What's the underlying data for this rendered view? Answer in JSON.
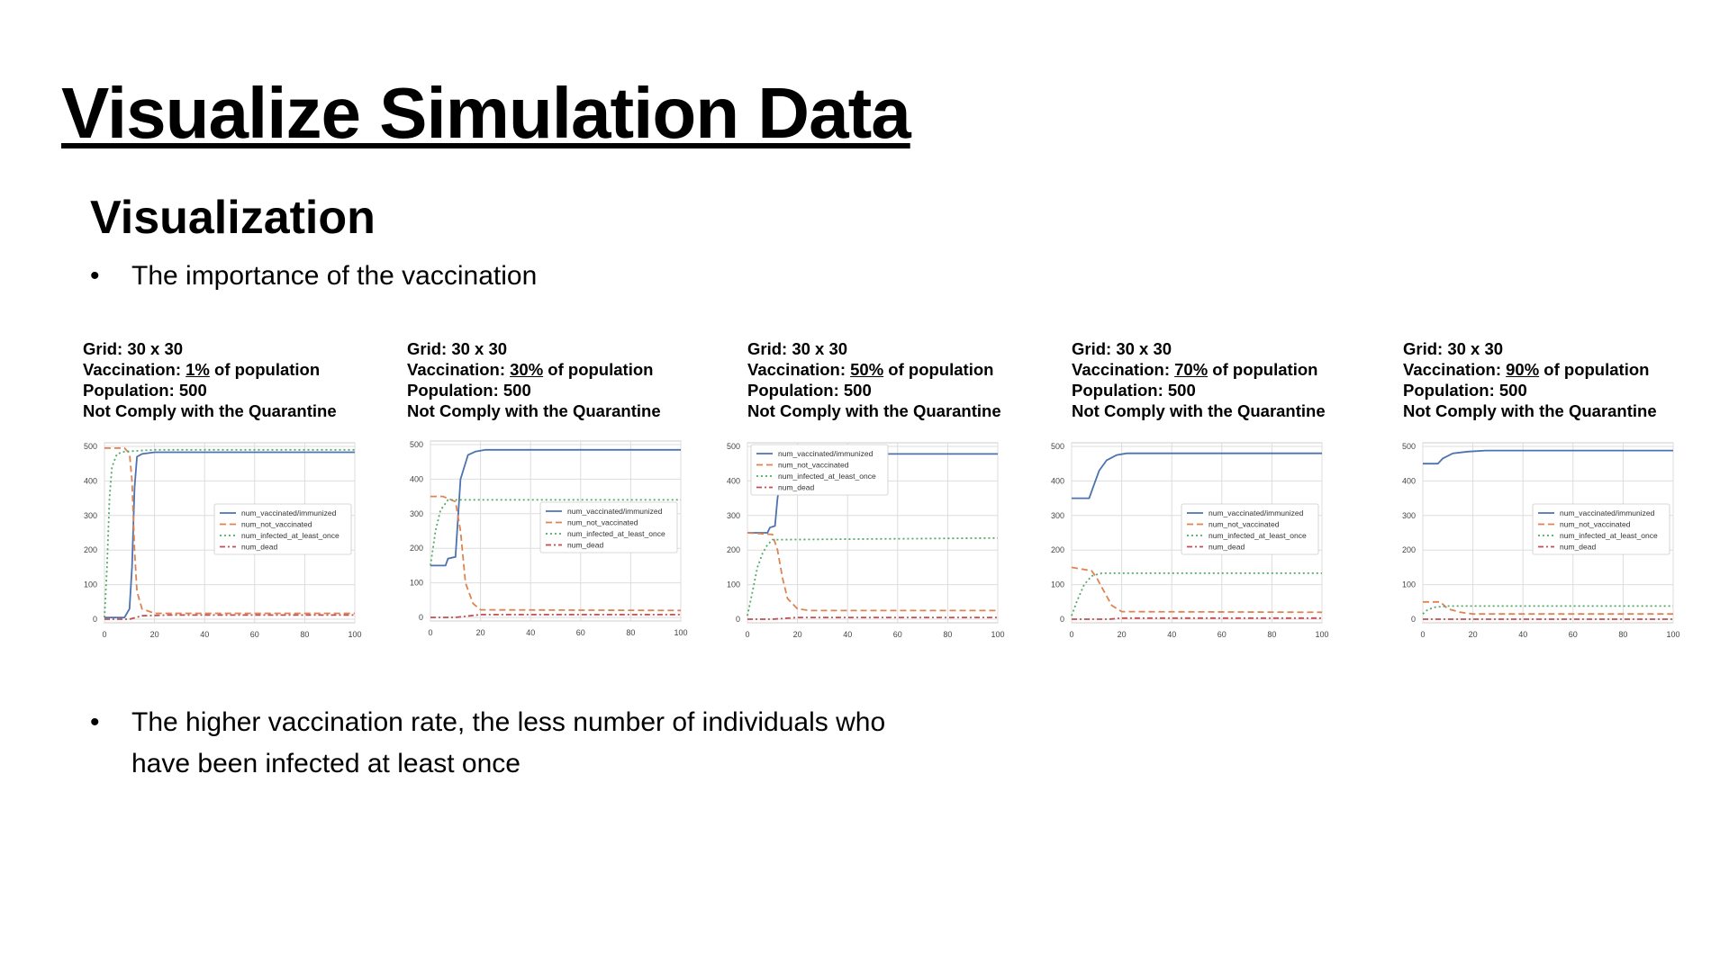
{
  "slide": {
    "title": "Visualize Simulation Data",
    "subtitle": "Visualization",
    "bullets": [
      "The importance of the vaccination",
      "The higher vaccination rate, the less number of individuals who have been infected at least once"
    ]
  },
  "colors": {
    "num_vaccinated_immunized": "#4c72b0",
    "num_not_vaccinated": "#dd8452",
    "num_infected_at_least_once": "#55a868",
    "num_dead": "#c44e52",
    "grid": "#dddddd",
    "frame": "#cccccc"
  },
  "panels": [
    {
      "grid": "Grid: 30 x 30",
      "vacc_prefix": "Vaccination: ",
      "vacc_value": "1%",
      "vacc_suffix": " of population",
      "population": "Population: 500",
      "quarantine": "Not Comply with the Quarantine"
    },
    {
      "grid": "Grid: 30 x 30",
      "vacc_prefix": "Vaccination: ",
      "vacc_value": "30%",
      "vacc_suffix": " of population",
      "population": "Population: 500",
      "quarantine": "Not Comply with the Quarantine"
    },
    {
      "grid": "Grid: 30 x 30",
      "vacc_prefix": "Vaccination: ",
      "vacc_value": "50%",
      "vacc_suffix": " of population",
      "population": "Population: 500",
      "quarantine": "Not Comply with the Quarantine"
    },
    {
      "grid": "Grid: 30 x 30",
      "vacc_prefix": "Vaccination: ",
      "vacc_value": "70%",
      "vacc_suffix": " of population",
      "population": "Population: 500",
      "quarantine": "Not Comply with the Quarantine"
    },
    {
      "grid": "Grid: 30 x 30",
      "vacc_prefix": "Vaccination: ",
      "vacc_value": "90%",
      "vacc_suffix": " of population",
      "population": "Population: 500",
      "quarantine": "Not Comply with the Quarantine"
    }
  ],
  "chart_data": [
    {
      "type": "line",
      "xlim": [
        0,
        100
      ],
      "ylim": [
        0,
        500
      ],
      "xticks": [
        0,
        20,
        40,
        60,
        80,
        100
      ],
      "yticks": [
        0,
        100,
        200,
        300,
        400,
        500
      ],
      "legend_position": "center-right",
      "grid": true,
      "series": [
        {
          "name": "num_vaccinated/immunized",
          "style": "solid",
          "points": [
            [
              0,
              5
            ],
            [
              8,
              5
            ],
            [
              10,
              30
            ],
            [
              11,
              150
            ],
            [
              12,
              380
            ],
            [
              13,
              470
            ],
            [
              15,
              478
            ],
            [
              20,
              483
            ],
            [
              100,
              483
            ]
          ]
        },
        {
          "name": "num_not_vaccinated",
          "style": "dashed",
          "points": [
            [
              0,
              495
            ],
            [
              8,
              495
            ],
            [
              10,
              480
            ],
            [
              11,
              400
            ],
            [
              12,
              200
            ],
            [
              13,
              80
            ],
            [
              15,
              30
            ],
            [
              20,
              17
            ],
            [
              100,
              17
            ]
          ]
        },
        {
          "name": "num_infected_at_least_once",
          "style": "dotted",
          "points": [
            [
              0,
              5
            ],
            [
              1,
              150
            ],
            [
              2,
              350
            ],
            [
              3,
              440
            ],
            [
              5,
              478
            ],
            [
              8,
              485
            ],
            [
              20,
              490
            ],
            [
              100,
              490
            ]
          ]
        },
        {
          "name": "num_dead",
          "style": "dashdot",
          "points": [
            [
              0,
              0
            ],
            [
              10,
              0
            ],
            [
              15,
              10
            ],
            [
              25,
              12
            ],
            [
              100,
              12
            ]
          ]
        }
      ]
    },
    {
      "type": "line",
      "xlim": [
        0,
        100
      ],
      "ylim": [
        0,
        500
      ],
      "xticks": [
        0,
        20,
        40,
        60,
        80,
        100
      ],
      "yticks": [
        0,
        100,
        200,
        300,
        400,
        500
      ],
      "legend_position": "center-right",
      "grid": true,
      "series": [
        {
          "name": "num_vaccinated/immunized",
          "style": "solid",
          "points": [
            [
              0,
              150
            ],
            [
              6,
              150
            ],
            [
              7,
              170
            ],
            [
              10,
              175
            ],
            [
              12,
              400
            ],
            [
              15,
              470
            ],
            [
              18,
              480
            ],
            [
              22,
              485
            ],
            [
              100,
              485
            ]
          ]
        },
        {
          "name": "num_not_vaccinated",
          "style": "dashed",
          "points": [
            [
              0,
              350
            ],
            [
              5,
              350
            ],
            [
              10,
              335
            ],
            [
              12,
              250
            ],
            [
              14,
              100
            ],
            [
              17,
              40
            ],
            [
              20,
              22
            ],
            [
              100,
              20
            ]
          ]
        },
        {
          "name": "num_infected_at_least_once",
          "style": "dotted",
          "points": [
            [
              0,
              150
            ],
            [
              2,
              250
            ],
            [
              4,
              310
            ],
            [
              7,
              340
            ],
            [
              100,
              340
            ]
          ]
        },
        {
          "name": "num_dead",
          "style": "dashdot",
          "points": [
            [
              0,
              0
            ],
            [
              10,
              0
            ],
            [
              20,
              8
            ],
            [
              100,
              8
            ]
          ]
        }
      ]
    },
    {
      "type": "line",
      "xlim": [
        0,
        100
      ],
      "ylim": [
        0,
        500
      ],
      "xticks": [
        0,
        20,
        40,
        60,
        80,
        100
      ],
      "yticks": [
        0,
        100,
        200,
        300,
        400,
        500
      ],
      "legend_position": "top-left",
      "grid": true,
      "series": [
        {
          "name": "num_vaccinated/immunized",
          "style": "solid",
          "points": [
            [
              0,
              250
            ],
            [
              8,
              250
            ],
            [
              9,
              265
            ],
            [
              11,
              270
            ],
            [
              12,
              350
            ],
            [
              14,
              440
            ],
            [
              16,
              470
            ],
            [
              20,
              478
            ],
            [
              100,
              478
            ]
          ]
        },
        {
          "name": "num_not_vaccinated",
          "style": "dashed",
          "points": [
            [
              0,
              250
            ],
            [
              10,
              245
            ],
            [
              12,
              200
            ],
            [
              14,
              120
            ],
            [
              16,
              60
            ],
            [
              20,
              30
            ],
            [
              25,
              25
            ],
            [
              100,
              25
            ]
          ]
        },
        {
          "name": "num_infected_at_least_once",
          "style": "dotted",
          "points": [
            [
              0,
              10
            ],
            [
              2,
              80
            ],
            [
              4,
              150
            ],
            [
              6,
              190
            ],
            [
              8,
              215
            ],
            [
              10,
              230
            ],
            [
              100,
              235
            ]
          ]
        },
        {
          "name": "num_dead",
          "style": "dashdot",
          "points": [
            [
              0,
              0
            ],
            [
              10,
              0
            ],
            [
              20,
              5
            ],
            [
              100,
              5
            ]
          ]
        }
      ]
    },
    {
      "type": "line",
      "xlim": [
        0,
        100
      ],
      "ylim": [
        0,
        500
      ],
      "xticks": [
        0,
        20,
        40,
        60,
        80,
        100
      ],
      "yticks": [
        0,
        100,
        200,
        300,
        400,
        500
      ],
      "legend_position": "center-right",
      "grid": true,
      "series": [
        {
          "name": "num_vaccinated/immunized",
          "style": "solid",
          "points": [
            [
              0,
              350
            ],
            [
              7,
              350
            ],
            [
              9,
              390
            ],
            [
              11,
              430
            ],
            [
              14,
              460
            ],
            [
              18,
              475
            ],
            [
              22,
              480
            ],
            [
              100,
              480
            ]
          ]
        },
        {
          "name": "num_not_vaccinated",
          "style": "dashed",
          "points": [
            [
              0,
              150
            ],
            [
              8,
              140
            ],
            [
              10,
              120
            ],
            [
              13,
              80
            ],
            [
              16,
              40
            ],
            [
              20,
              22
            ],
            [
              100,
              20
            ]
          ]
        },
        {
          "name": "num_infected_at_least_once",
          "style": "dotted",
          "points": [
            [
              0,
              10
            ],
            [
              2,
              50
            ],
            [
              5,
              100
            ],
            [
              8,
              125
            ],
            [
              12,
              133
            ],
            [
              100,
              133
            ]
          ]
        },
        {
          "name": "num_dead",
          "style": "dashdot",
          "points": [
            [
              0,
              0
            ],
            [
              15,
              0
            ],
            [
              20,
              3
            ],
            [
              100,
              3
            ]
          ]
        }
      ]
    },
    {
      "type": "line",
      "xlim": [
        0,
        100
      ],
      "ylim": [
        0,
        500
      ],
      "xticks": [
        0,
        20,
        40,
        60,
        80,
        100
      ],
      "yticks": [
        0,
        100,
        200,
        300,
        400,
        500
      ],
      "legend_position": "center-right",
      "grid": true,
      "series": [
        {
          "name": "num_vaccinated/immunized",
          "style": "solid",
          "points": [
            [
              0,
              450
            ],
            [
              6,
              450
            ],
            [
              8,
              465
            ],
            [
              12,
              480
            ],
            [
              18,
              485
            ],
            [
              25,
              488
            ],
            [
              100,
              488
            ]
          ]
        },
        {
          "name": "num_not_vaccinated",
          "style": "dashed",
          "points": [
            [
              0,
              50
            ],
            [
              7,
              50
            ],
            [
              10,
              30
            ],
            [
              15,
              20
            ],
            [
              20,
              15
            ],
            [
              100,
              15
            ]
          ]
        },
        {
          "name": "num_infected_at_least_once",
          "style": "dotted",
          "points": [
            [
              0,
              15
            ],
            [
              2,
              28
            ],
            [
              5,
              35
            ],
            [
              10,
              38
            ],
            [
              100,
              38
            ]
          ]
        },
        {
          "name": "num_dead",
          "style": "dashdot",
          "points": [
            [
              0,
              0
            ],
            [
              100,
              0
            ]
          ]
        }
      ]
    }
  ]
}
